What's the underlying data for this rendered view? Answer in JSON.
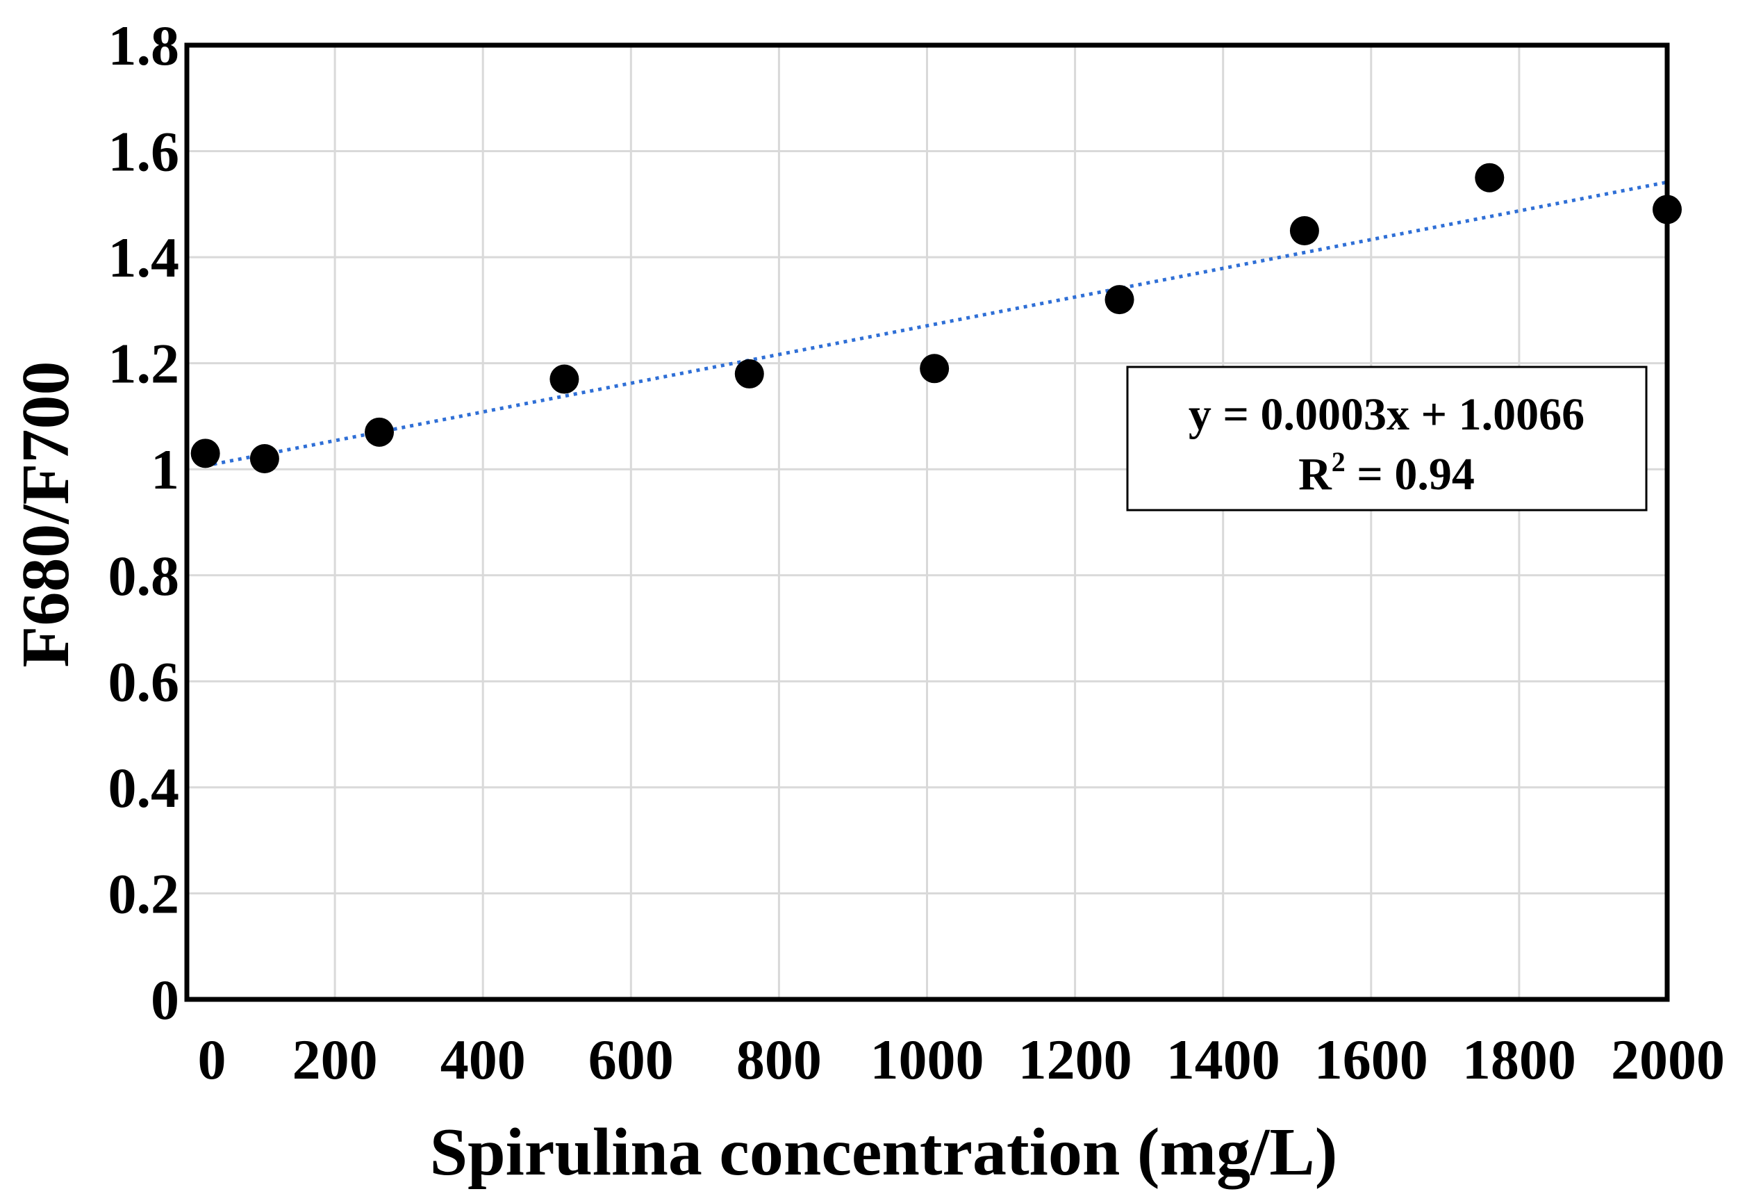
{
  "chart_data": {
    "type": "scatter",
    "title": "",
    "xlabel": "Spirulina concentration (mg/L)",
    "ylabel": "F680/F700",
    "xlim": [
      0,
      2000
    ],
    "ylim": [
      0,
      1.8
    ],
    "x_ticks": [
      0,
      200,
      400,
      600,
      800,
      1000,
      1200,
      1400,
      1600,
      1800,
      2000
    ],
    "x_tick_labels": [
      "0",
      "200",
      "400",
      "600",
      "800",
      "1000",
      "1200",
      "1400",
      "1600",
      "1800",
      "2000"
    ],
    "y_ticks": [
      0,
      0.2,
      0.4,
      0.6,
      0.8,
      1,
      1.2,
      1.4,
      1.6,
      1.8
    ],
    "y_tick_labels": [
      "0",
      "0.2",
      "0.4",
      "0.6",
      "0.8",
      "1",
      "1.2",
      "1.4",
      "1.6",
      "1.8"
    ],
    "grid": true,
    "series": [
      {
        "x": [
          25,
          105,
          260,
          510,
          760,
          1010,
          1260,
          1510,
          1760,
          2000
        ],
        "y": [
          1.03,
          1.02,
          1.07,
          1.17,
          1.18,
          1.19,
          1.32,
          1.45,
          1.55,
          1.49
        ]
      }
    ],
    "trendline": {
      "style": "dotted",
      "x_range": [
        25,
        2000
      ],
      "y_range": [
        1.0066,
        1.5416
      ]
    },
    "annotation": {
      "equation": "y = 0.0003x + 1.0066",
      "r2_prefix": "R",
      "r2_sup": "2",
      "r2_value": " = 0.94",
      "placement": "right"
    },
    "colors": {
      "points": "#000000",
      "trendline": "#2f6fd6",
      "grid": "#d9d9d9",
      "frame": "#000000"
    }
  }
}
